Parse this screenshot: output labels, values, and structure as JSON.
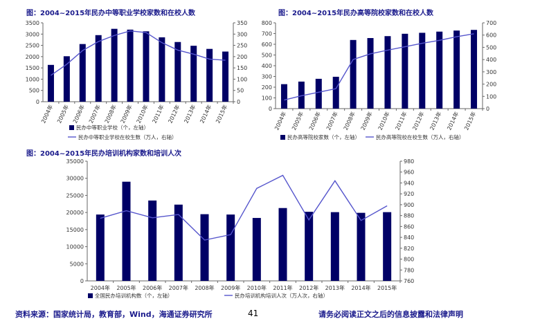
{
  "chart_data": [
    {
      "type": "bar",
      "title": "图：2004~2015年民办中等职业学校家数和在校人数",
      "categories": [
        "2004年",
        "2005年",
        "2006年",
        "2007年",
        "2008年",
        "2009年",
        "2010年",
        "2011年",
        "2012年",
        "2013年",
        "2014年",
        "2015年"
      ],
      "series": [
        {
          "name": "民办中等职业学校（个，左轴）",
          "type": "bar",
          "axis": "left",
          "color": "#000066",
          "values": [
            1633,
            2017,
            2559,
            2954,
            3234,
            3198,
            3123,
            2856,
            2649,
            2482,
            2343,
            2225
          ]
        },
        {
          "name": "民办中等职业学校在校生数（万人，右轴）",
          "type": "line",
          "axis": "right",
          "color": "#5555cc",
          "values": [
            117,
            166,
            227,
            267,
            294,
            314,
            307,
            262,
            229,
            211,
            189,
            184
          ]
        }
      ],
      "yleft": {
        "min": 0,
        "max": 3500,
        "step": 500
      },
      "yright": {
        "min": 0,
        "max": 350,
        "step": 50
      },
      "xlabel_rotated": true
    },
    {
      "type": "bar",
      "title": "图：2004~2015年民办高等院校家数和在校人数",
      "categories": [
        "2004年",
        "2005年",
        "2006年",
        "2007年",
        "2008年",
        "2009年",
        "2010年",
        "2011年",
        "2012年",
        "2013年",
        "2014年",
        "2015年"
      ],
      "series": [
        {
          "name": "民办高等院校家数（个，左轴）",
          "type": "bar",
          "axis": "left",
          "color": "#000066",
          "values": [
            228,
            252,
            278,
            297,
            640,
            658,
            676,
            698,
            707,
            718,
            728,
            734
          ]
        },
        {
          "name": "民办高等院校在校生数（万人，右轴）",
          "type": "line",
          "axis": "right",
          "color": "#5555cc",
          "values": [
            70,
            105,
            134,
            163,
            401,
            447,
            477,
            505,
            533,
            557,
            587,
            611
          ]
        }
      ],
      "yleft": {
        "min": 0,
        "max": 800,
        "step": 100
      },
      "yright": {
        "min": 0,
        "max": 700,
        "step": 100
      },
      "xlabel_rotated": true
    },
    {
      "type": "bar",
      "title": "图：2004~2015年民办培训机构家数和培训人次",
      "categories": [
        "2004年",
        "2005年",
        "2006年",
        "2007年",
        "2008年",
        "2009年",
        "2010年",
        "2011年",
        "2012年",
        "2013年",
        "2014年",
        "2015年"
      ],
      "series": [
        {
          "name": "全国民办培训机构数（个，左轴）",
          "type": "bar",
          "axis": "left",
          "color": "#000066",
          "values": [
            19400,
            29000,
            23500,
            22300,
            19500,
            19400,
            18400,
            21300,
            20200,
            20100,
            19900,
            20100
          ]
        },
        {
          "name": "民办培训机构培训人次（万人次，右轴）",
          "type": "line",
          "axis": "right",
          "color": "#5555cc",
          "values": null,
          "values_right": [
            875,
            889,
            876,
            882,
            835,
            845,
            930,
            954,
            872,
            944,
            871,
            898
          ]
        }
      ],
      "yleft": {
        "min": 0,
        "max": 35000,
        "step": 5000
      },
      "yright": {
        "min": 760,
        "max": 980,
        "step": 20
      },
      "xlabel_rotated": false
    }
  ],
  "footer": {
    "source": "资料来源：国家统计局，教育部，Wind，海通证券研究所",
    "page": "41",
    "disclaimer": "请务必阅读正文之后的信息披露和法律声明"
  }
}
